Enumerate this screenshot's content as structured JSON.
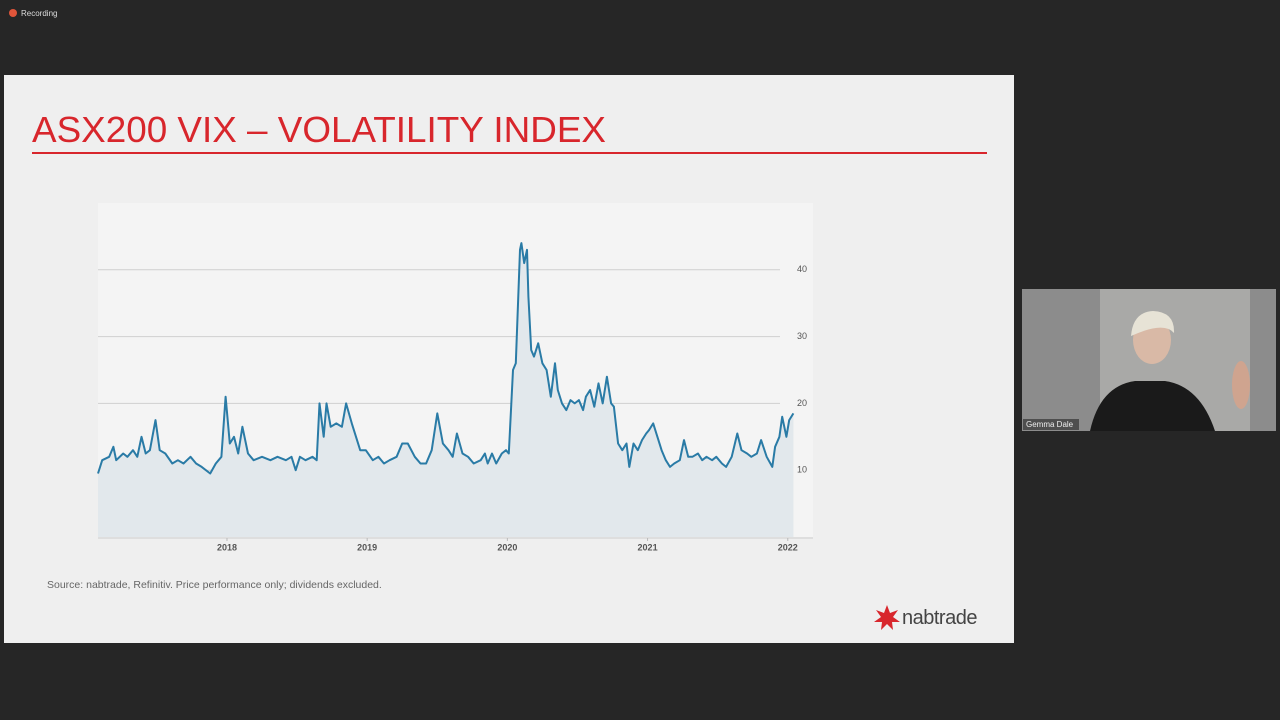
{
  "app": {
    "recording_label": "Recording"
  },
  "slide": {
    "title": "ASX200 VIX – VOLATILITY INDEX",
    "source": "Source: nabtrade, Refinitiv. Price performance only; dividends excluded.",
    "logo": "nabtrade"
  },
  "participant": {
    "name": "Gemma Dale"
  },
  "chart_data": {
    "type": "line",
    "x": [
      2017.08,
      2017.11,
      2017.16,
      2017.19,
      2017.21,
      2017.26,
      2017.29,
      2017.33,
      2017.36,
      2017.39,
      2017.42,
      2017.45,
      2017.49,
      2017.52,
      2017.56,
      2017.61,
      2017.65,
      2017.69,
      2017.74,
      2017.78,
      2017.82,
      2017.88,
      2017.92,
      2017.96,
      2017.99,
      2018.02,
      2018.05,
      2018.08,
      2018.11,
      2018.15,
      2018.19,
      2018.25,
      2018.31,
      2018.36,
      2018.42,
      2018.46,
      2018.49,
      2018.52,
      2018.56,
      2018.61,
      2018.64,
      2018.66,
      2018.69,
      2018.71,
      2018.74,
      2018.78,
      2018.82,
      2018.85,
      2018.89,
      2018.95,
      2018.99,
      2019.04,
      2019.08,
      2019.12,
      2019.16,
      2019.21,
      2019.25,
      2019.29,
      2019.34,
      2019.38,
      2019.42,
      2019.46,
      2019.5,
      2019.54,
      2019.58,
      2019.61,
      2019.64,
      2019.68,
      2019.72,
      2019.76,
      2019.81,
      2019.84,
      2019.86,
      2019.89,
      2019.92,
      2019.96,
      2019.99,
      2020.01,
      2020.04,
      2020.06,
      2020.09,
      2020.1,
      2020.12,
      2020.14,
      2020.15,
      2020.17,
      2020.19,
      2020.22,
      2020.25,
      2020.28,
      2020.31,
      2020.34,
      2020.36,
      2020.39,
      2020.42,
      2020.45,
      2020.48,
      2020.51,
      2020.54,
      2020.56,
      2020.59,
      2020.62,
      2020.65,
      2020.68,
      2020.71,
      2020.74,
      2020.76,
      2020.79,
      2020.82,
      2020.85,
      2020.87,
      2020.9,
      2020.93,
      2020.96,
      2020.99,
      2021.01,
      2021.04,
      2021.07,
      2021.1,
      2021.13,
      2021.16,
      2021.19,
      2021.23,
      2021.26,
      2021.29,
      2021.32,
      2021.36,
      2021.39,
      2021.42,
      2021.46,
      2021.49,
      2021.53,
      2021.56,
      2021.6,
      2021.64,
      2021.67,
      2021.71,
      2021.74,
      2021.78,
      2021.81,
      2021.85,
      2021.89,
      2021.91,
      2021.94,
      2021.96,
      2021.99,
      2022.01,
      2022.04
    ],
    "values": [
      9.5,
      11.5,
      12,
      13.5,
      11.5,
      12.5,
      12,
      13,
      12,
      15,
      12.5,
      13,
      17.5,
      13,
      12.5,
      11,
      11.5,
      11,
      12,
      11,
      10.5,
      9.5,
      11,
      12,
      21,
      14,
      15,
      12.5,
      16.5,
      12.5,
      11.5,
      12,
      11.5,
      12,
      11.5,
      12,
      10,
      12,
      11.5,
      12,
      11.5,
      20,
      15,
      20,
      16.5,
      17,
      16.5,
      20,
      17,
      13,
      13,
      11.5,
      12,
      11,
      11.5,
      12,
      14,
      14,
      12,
      11,
      11,
      13,
      18.5,
      14,
      13,
      12,
      15.5,
      12.5,
      12,
      11,
      11.5,
      12.5,
      11,
      12.5,
      11,
      12.5,
      13,
      12.5,
      25,
      26,
      43,
      44,
      41,
      43,
      36,
      28,
      27,
      29,
      26,
      25,
      21,
      26,
      22,
      20,
      19,
      20.5,
      20,
      20.5,
      19,
      21,
      22,
      19.5,
      23,
      20,
      24,
      20,
      19.5,
      14,
      13,
      14,
      10.5,
      14,
      13,
      14.5,
      15.5,
      16,
      17,
      15,
      13,
      11.5,
      10.5,
      11,
      11.5,
      14.5,
      12,
      12,
      12.5,
      11.5,
      12,
      11.5,
      12,
      11,
      10.5,
      12,
      15.5,
      13,
      12.5,
      12,
      12.5,
      14.5,
      12,
      10.5,
      13.5,
      15,
      18,
      15,
      17.5,
      18.5
    ],
    "color": "#2a7ba6",
    "area_color": "#e2e8ec",
    "xlim": [
      2017.08,
      2022.18
    ],
    "xticks": [
      2018,
      2019,
      2020,
      2021,
      2022
    ],
    "ylim": [
      0,
      50
    ],
    "yticks": [
      10,
      20,
      30,
      40
    ],
    "grid": true
  }
}
